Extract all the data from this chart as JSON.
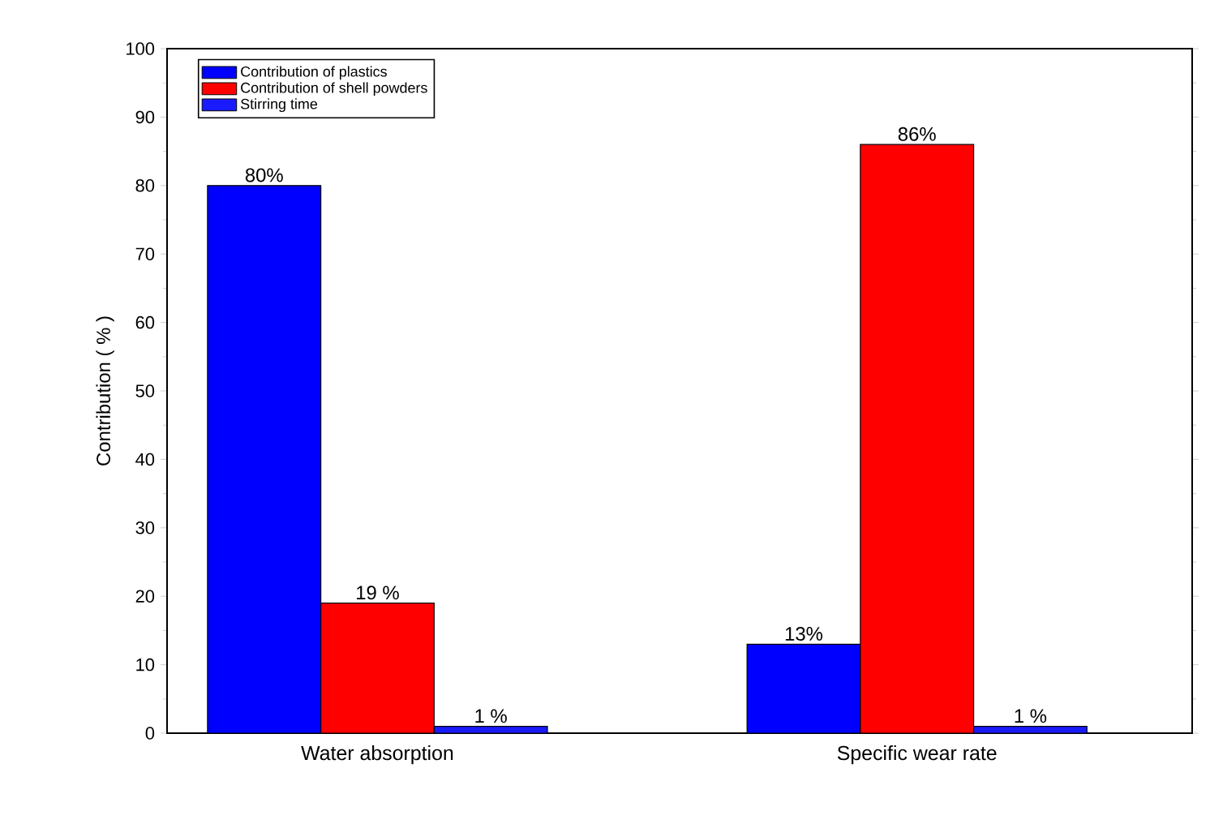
{
  "chart_data": {
    "type": "bar",
    "ylabel": "Contribution ( % )",
    "categories": [
      "Water absorption",
      "Specific wear rate"
    ],
    "series": [
      {
        "name": "Contribution of plastics",
        "color": "#0000ff",
        "values": [
          80,
          13
        ],
        "value_labels": [
          "80%",
          "13%"
        ]
      },
      {
        "name": "Contribution of shell powders",
        "color": "#ff0000",
        "values": [
          19,
          86
        ],
        "value_labels": [
          "19 %",
          "86%"
        ]
      },
      {
        "name": "Stirring time",
        "color": "#1a1aff",
        "values": [
          1,
          1
        ],
        "value_labels": [
          "1 %",
          "1 %"
        ]
      }
    ],
    "ylim": [
      0,
      100
    ],
    "yticks": [
      0,
      10,
      20,
      30,
      40,
      50,
      60,
      70,
      80,
      90,
      100
    ],
    "legend": "top left"
  }
}
